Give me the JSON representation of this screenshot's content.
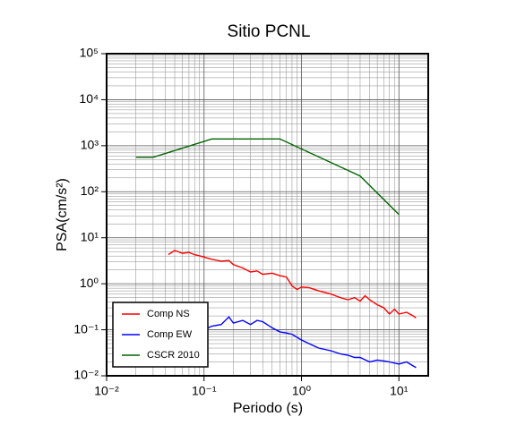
{
  "chart_data": {
    "type": "line",
    "title": "Sitio PCNL",
    "xlabel": "Periodo (s)",
    "ylabel": "PSA(cm/s²)",
    "xscale": "log",
    "yscale": "log",
    "grid": true,
    "legend": "lower left",
    "xlim": [
      0.01,
      20
    ],
    "xticks": [
      {
        "value": 0.01,
        "label": "10⁻²"
      },
      {
        "value": 0.1,
        "label": "10⁻¹"
      },
      {
        "value": 1,
        "label": "10⁰"
      },
      {
        "value": 10,
        "label": "10¹"
      }
    ],
    "ylim": [
      0.01,
      100000
    ],
    "yticks": [
      {
        "value": 0.01,
        "label": "10⁻²"
      },
      {
        "value": 0.1,
        "label": "10⁻¹"
      },
      {
        "value": 1,
        "label": "10⁰"
      },
      {
        "value": 10,
        "label": "10¹"
      },
      {
        "value": 100,
        "label": "10²"
      },
      {
        "value": 1000,
        "label": "10³"
      },
      {
        "value": 10000,
        "label": "10⁴"
      },
      {
        "value": 100000,
        "label": "10⁵"
      }
    ],
    "series": [
      {
        "name": "Comp NS",
        "color": "#ff0000",
        "x": [
          0.043,
          0.05,
          0.06,
          0.07,
          0.08,
          0.1,
          0.12,
          0.15,
          0.18,
          0.2,
          0.25,
          0.3,
          0.35,
          0.4,
          0.5,
          0.6,
          0.7,
          0.8,
          0.9,
          1.0,
          1.2,
          1.5,
          2,
          2.5,
          3,
          3.5,
          4,
          4.5,
          5,
          6,
          7,
          8,
          9,
          10,
          12,
          14,
          15
        ],
        "values": [
          4.3,
          5.3,
          4.6,
          4.8,
          4.3,
          3.8,
          3.4,
          3.1,
          3.2,
          2.6,
          2.2,
          1.8,
          1.9,
          1.6,
          1.7,
          1.5,
          1.4,
          0.9,
          0.75,
          0.85,
          0.82,
          0.7,
          0.6,
          0.5,
          0.45,
          0.5,
          0.42,
          0.55,
          0.45,
          0.35,
          0.3,
          0.22,
          0.28,
          0.22,
          0.24,
          0.2,
          0.18
        ]
      },
      {
        "name": "Comp EW",
        "color": "#0000ff",
        "x": [
          0.1,
          0.12,
          0.15,
          0.18,
          0.2,
          0.25,
          0.3,
          0.35,
          0.4,
          0.5,
          0.6,
          0.7,
          0.8,
          1,
          1.2,
          1.5,
          2,
          2.5,
          3,
          3.5,
          4,
          5,
          6,
          7,
          8,
          10,
          12,
          13,
          15
        ],
        "values": [
          0.1,
          0.12,
          0.13,
          0.19,
          0.14,
          0.16,
          0.13,
          0.16,
          0.15,
          0.11,
          0.09,
          0.085,
          0.08,
          0.06,
          0.05,
          0.04,
          0.035,
          0.03,
          0.028,
          0.025,
          0.025,
          0.02,
          0.022,
          0.021,
          0.02,
          0.018,
          0.02,
          0.018,
          0.015
        ]
      },
      {
        "name": "CSCR 2010",
        "color": "#006400",
        "x": [
          0.02,
          0.03,
          0.12,
          0.6,
          4,
          10
        ],
        "values": [
          560,
          560,
          1400,
          1400,
          220,
          32
        ]
      }
    ]
  }
}
